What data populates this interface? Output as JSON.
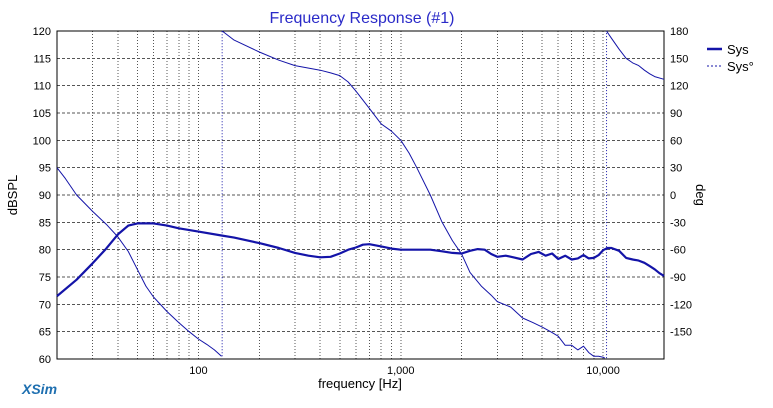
{
  "chart_data": {
    "type": "line",
    "title": "Frequency Response (#1)",
    "xlabel": "frequency [Hz]",
    "ylabel_left": "dBSPL",
    "ylabel_right": "deg",
    "x_scale": "log",
    "xlim": [
      20,
      20000
    ],
    "ylim_left": [
      60,
      120
    ],
    "ylim_right": [
      -180,
      180
    ],
    "x_tick_labels": [
      "100",
      "1,000",
      "10,000"
    ],
    "x_tick_values": [
      100,
      1000,
      10000
    ],
    "y_left_ticks": [
      60,
      65,
      70,
      75,
      80,
      85,
      90,
      95,
      100,
      105,
      110,
      115,
      120
    ],
    "y_right_ticks": [
      -150,
      -120,
      -90,
      -60,
      -30,
      0,
      30,
      60,
      90,
      120,
      150,
      180
    ],
    "grid": true,
    "legend_position": "top-right",
    "colors": {
      "line": "#1414a8",
      "grid": "#555555",
      "title": "#2a2ac8",
      "brand": "#1e6fb0"
    },
    "series": [
      {
        "name": "Sys",
        "axis": "left",
        "style": "solid",
        "x": [
          20,
          25,
          30,
          35,
          40,
          45,
          50,
          60,
          70,
          80,
          100,
          130,
          150,
          200,
          250,
          300,
          350,
          400,
          450,
          500,
          550,
          600,
          650,
          700,
          800,
          900,
          1000,
          1200,
          1400,
          1600,
          1800,
          2000,
          2200,
          2400,
          2600,
          2800,
          3000,
          3300,
          3600,
          4000,
          4400,
          4800,
          5200,
          5600,
          6000,
          6500,
          7000,
          7500,
          8000,
          8500,
          9000,
          9500,
          10000,
          10500,
          11000,
          12000,
          13000,
          14000,
          15000,
          16000,
          17000,
          18000,
          19000,
          20000
        ],
        "values": [
          71.5,
          74.5,
          77.5,
          80.2,
          82.8,
          84.4,
          84.8,
          84.8,
          84.4,
          83.9,
          83.3,
          82.6,
          82.2,
          81.2,
          80.3,
          79.4,
          78.9,
          78.6,
          78.7,
          79.3,
          80.0,
          80.4,
          80.9,
          81.0,
          80.6,
          80.2,
          80.0,
          80.0,
          80.0,
          79.7,
          79.4,
          79.3,
          79.8,
          80.1,
          80.0,
          79.2,
          78.7,
          78.9,
          78.6,
          78.2,
          79.2,
          79.6,
          78.9,
          79.3,
          78.3,
          78.9,
          78.2,
          78.4,
          79.0,
          78.4,
          78.5,
          79.0,
          79.9,
          80.3,
          80.3,
          79.8,
          78.5,
          78.2,
          78.0,
          77.6,
          77.0,
          76.4,
          75.7,
          75.2
        ]
      },
      {
        "name": "Sys°",
        "axis": "right",
        "style": "dotted",
        "x": [
          20,
          22,
          25,
          30,
          35,
          40,
          45,
          50,
          55,
          60,
          70,
          80,
          90,
          100,
          110,
          120,
          130,
          131,
          150,
          200,
          250,
          300,
          400,
          450,
          500,
          550,
          600,
          700,
          800,
          900,
          1000,
          1100,
          1200,
          1400,
          1600,
          1800,
          2000,
          2200,
          2500,
          2800,
          3000,
          3500,
          4000,
          4500,
          5000,
          5500,
          6000,
          6500,
          7000,
          7500,
          8000,
          8500,
          9000,
          9500,
          10000,
          10200,
          10400,
          11000,
          12000,
          13000,
          14000,
          15000,
          16000,
          17000,
          18000,
          20000
        ],
        "values": [
          30,
          18,
          0,
          -18,
          -32,
          -46,
          -62,
          -82,
          -100,
          -112,
          -128,
          -140,
          -150,
          -158,
          -164,
          -170,
          -177,
          180,
          170,
          157,
          148,
          142,
          137,
          134,
          131,
          124,
          114,
          95,
          78,
          70,
          60,
          46,
          30,
          0,
          -30,
          -50,
          -65,
          -85,
          -100,
          -110,
          -117,
          -123,
          -135,
          -140,
          -145,
          -150,
          -155,
          -165,
          -165,
          -170,
          -166,
          -173,
          -177,
          -177,
          -178,
          -179,
          180,
          172,
          160,
          150,
          145,
          142,
          137,
          133,
          130,
          127
        ]
      }
    ]
  },
  "brand_text": "XSim"
}
